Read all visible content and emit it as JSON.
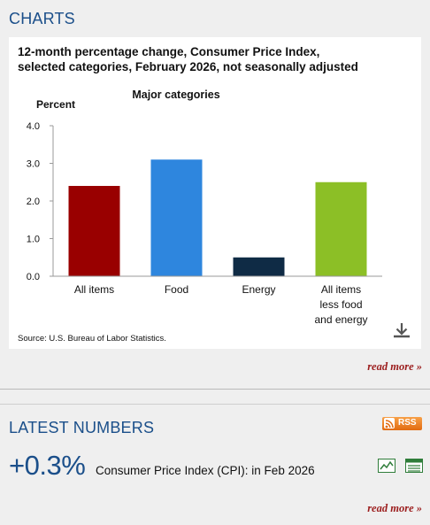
{
  "charts_section": {
    "title": "CHARTS",
    "chart_title_line1": "12-month percentage change, Consumer Price Index,",
    "chart_title_line2": "selected categories, February 2026, not seasonally adjusted",
    "source": "Source: U.S. Bureau of Labor Statistics.",
    "read_more": "read more »",
    "download_icon": "download-icon"
  },
  "chart_data": {
    "type": "bar",
    "title": "Major categories",
    "ylabel": "Percent",
    "xlabel": "",
    "categories": [
      [
        "All items"
      ],
      [
        "Food"
      ],
      [
        "Energy"
      ],
      [
        "All items",
        "less food",
        "and energy"
      ]
    ],
    "values": [
      2.4,
      3.1,
      0.5,
      2.5
    ],
    "colors": [
      "#990000",
      "#2e86de",
      "#0f2b45",
      "#8cbf26"
    ],
    "ylim": [
      0,
      4.0
    ],
    "yticks": [
      "0.0",
      "1.0",
      "2.0",
      "3.0",
      "4.0"
    ],
    "grid": false,
    "legend": "none"
  },
  "latest_section": {
    "title": "LATEST NUMBERS",
    "rss_label": "RSS",
    "value": "+0.3%",
    "label": "Consumer Price Index (CPI): in Feb 2026",
    "read_more": "read more »",
    "icons": [
      "chart-icon",
      "table-icon"
    ]
  }
}
